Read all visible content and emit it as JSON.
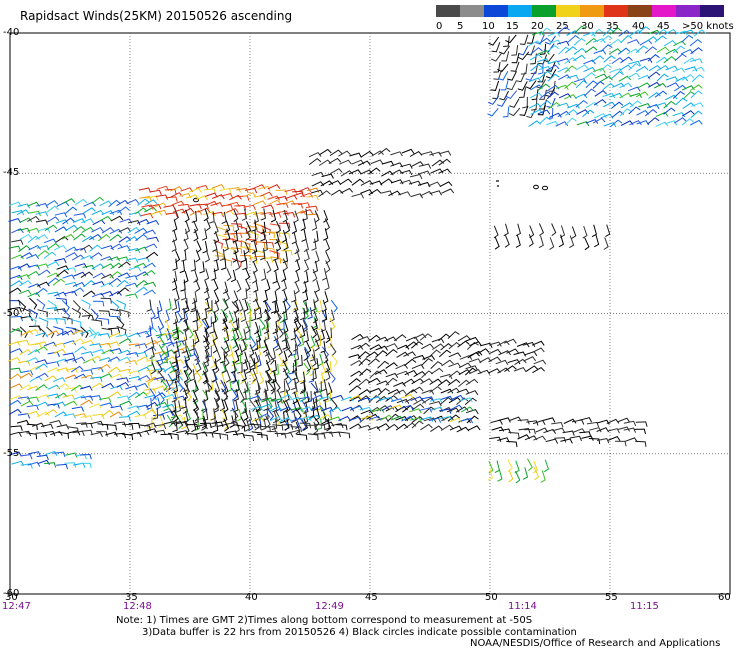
{
  "title": "Rapidsact Winds(25KM) 20150526 ascending",
  "legend": {
    "colors": [
      "#4a4a4a",
      "#8c8c8c",
      "#0b48d8",
      "#0aa8f0",
      "#0aa02c",
      "#f0d21a",
      "#f09a14",
      "#e03418",
      "#8a4218",
      "#e418c8",
      "#8a26c8",
      "#2c1476"
    ],
    "ticks": [
      "0",
      "5",
      "10",
      "15",
      "20",
      "25",
      "30",
      "35",
      "40",
      "45",
      ">50 knots"
    ]
  },
  "map": {
    "lon_range": [
      30,
      60
    ],
    "lat_range": [
      -40,
      -60
    ],
    "latitude_labels": [
      "-40",
      "-45",
      "-50",
      "-55",
      "-60"
    ],
    "longitude_labels": [
      "30",
      "35",
      "40",
      "45",
      "50",
      "55",
      "60"
    ],
    "gridlines": "dotted",
    "pass_times": [
      "12:47",
      "12:48",
      "12:49",
      "11:14",
      "11:15"
    ]
  },
  "notes": {
    "line1": "Note: 1) Times are GMT 2)Times along bottom correspond to measurement at -50S",
    "line2": "3)Data buffer is 22 hrs from 20150526 4) Black circles indicate possible contamination",
    "credit": "NOAA/NESDIS/Office of Research and Applications"
  }
}
